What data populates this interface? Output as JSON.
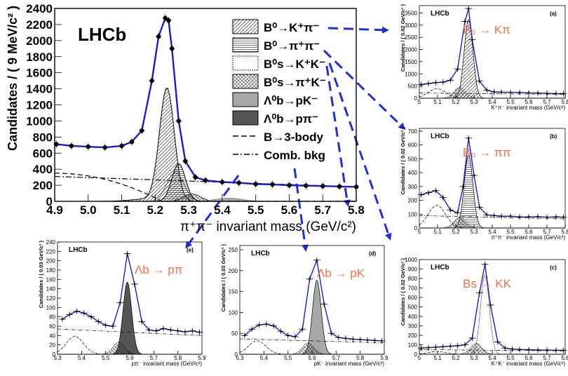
{
  "colors": {
    "fit": "#1c1cd8",
    "arrow": "#1f2fd6",
    "decay_label": "#f0704a",
    "lambda_pk": "#a8a8a8",
    "lambda_ppi": "#555555"
  },
  "chart_data": [
    {
      "id": "main",
      "type": "line",
      "experiment_label": "LHCb",
      "xlabel": "π⁺π⁻ invariant mass (GeV/c²)",
      "ylabel": "Candidates / ( 9 MeV/c² )",
      "xlim": [
        4.9,
        5.8
      ],
      "ylim": [
        0,
        2400
      ],
      "xticks": [
        "4.9",
        "5.0",
        "5.1",
        "5.2",
        "5.3",
        "5.4",
        "5.5",
        "5.6",
        "5.7",
        "5.8"
      ],
      "yticks": [
        "0",
        "200",
        "400",
        "600",
        "800",
        "1000",
        "1200",
        "1400",
        "1600",
        "1800",
        "2000",
        "2200",
        "2400"
      ],
      "legend_position": "top-right",
      "legend": [
        {
          "label": "B⁰→K⁺π⁻",
          "style": "hatch-diag"
        },
        {
          "label": "B⁰→π⁺π⁻",
          "style": "hatch-horiz"
        },
        {
          "label": "B⁰s→K⁺K⁻",
          "style": "dotted"
        },
        {
          "label": "B⁰s→π⁺K⁻",
          "style": "crosshatch"
        },
        {
          "label": "Λ⁰b→pK⁻",
          "style": "light-grey"
        },
        {
          "label": "Λ⁰b→pπ⁻",
          "style": "dark-grey"
        },
        {
          "label": "B→3-body",
          "style": "dashed"
        },
        {
          "label": "Comb. bkg",
          "style": "dashdot"
        }
      ],
      "data_points": {
        "x": [
          4.905,
          4.95,
          5.0,
          5.05,
          5.1,
          5.13,
          5.16,
          5.19,
          5.21,
          5.23,
          5.24,
          5.25,
          5.27,
          5.29,
          5.32,
          5.35,
          5.4,
          5.45,
          5.5,
          5.55,
          5.6,
          5.65,
          5.7,
          5.75,
          5.8
        ],
        "y": [
          710,
          690,
          680,
          670,
          690,
          740,
          880,
          1500,
          2050,
          2280,
          2250,
          1900,
          1000,
          500,
          300,
          260,
          240,
          230,
          215,
          210,
          200,
          195,
          190,
          185,
          180
        ]
      },
      "components": {
        "kpi_peak": {
          "mean": 5.235,
          "sigma": 0.022,
          "height": 1400
        },
        "pipi_peak": {
          "mean": 5.27,
          "sigma": 0.02,
          "height": 470
        },
        "kk_peak": {
          "mean": 5.26,
          "sigma": 0.025,
          "height": 360
        },
        "three_body": {
          "start": 350,
          "end_x": 5.22
        },
        "comb_bkg": {
          "start": 310,
          "end": 180
        }
      }
    },
    {
      "id": "a",
      "type": "line",
      "panel_label": "(a)",
      "experiment_label": "LHCb",
      "decay_label": "B₀ → Kπ",
      "xlabel": "K⁺π⁻ invariant mass (GeV/c²)",
      "ylabel": "Candidates / ( 0.02 GeV/c² )",
      "xlim": [
        5.0,
        5.8
      ],
      "ylim": [
        0,
        3800
      ],
      "xticks": [
        "5",
        "5.1",
        "5.2",
        "5.3",
        "5.4",
        "5.5",
        "5.6",
        "5.7",
        "5.8"
      ],
      "yticks": [
        "0",
        "500",
        "1000",
        "1500",
        "2000",
        "2500",
        "3000",
        "3500"
      ],
      "data_points": {
        "x": [
          5.01,
          5.05,
          5.09,
          5.13,
          5.17,
          5.21,
          5.25,
          5.27,
          5.29,
          5.33,
          5.37,
          5.41,
          5.45,
          5.5,
          5.55,
          5.6,
          5.65,
          5.7,
          5.75,
          5.79
        ],
        "y": [
          560,
          600,
          640,
          660,
          740,
          1200,
          3150,
          3680,
          2400,
          700,
          330,
          260,
          250,
          240,
          235,
          220,
          210,
          200,
          190,
          185
        ]
      }
    },
    {
      "id": "b",
      "type": "line",
      "panel_label": "(b)",
      "experiment_label": "LHCb",
      "decay_label": "B₀ → ππ",
      "xlabel": "π⁺π⁻ invariant mass (GeV/c²)",
      "ylabel": "Candidates / ( 0.02 GeV/c² )",
      "xlim": [
        5.0,
        5.8
      ],
      "ylim": [
        0,
        720
      ],
      "xticks": [
        "5",
        "5.1",
        "5.2",
        "5.3",
        "5.4",
        "5.5",
        "5.6",
        "5.7",
        "5.8"
      ],
      "yticks": [
        "0",
        "100",
        "200",
        "300",
        "400",
        "500",
        "600",
        "700"
      ],
      "data_points": {
        "x": [
          5.01,
          5.05,
          5.09,
          5.13,
          5.17,
          5.21,
          5.24,
          5.27,
          5.3,
          5.33,
          5.37,
          5.41,
          5.45,
          5.5,
          5.55,
          5.6,
          5.65,
          5.7,
          5.75,
          5.79
        ],
        "y": [
          240,
          255,
          270,
          220,
          130,
          110,
          300,
          650,
          380,
          150,
          95,
          90,
          85,
          85,
          80,
          80,
          82,
          78,
          80,
          78
        ]
      }
    },
    {
      "id": "c",
      "type": "line",
      "panel_label": "(c)",
      "experiment_label": "LHCb",
      "decay_label": "Bs → KK",
      "xlabel": "K⁺K⁻ invariant mass (GeV/c²)",
      "ylabel": "Candidates / ( 0.02 GeV/c² )",
      "xlim": [
        5.0,
        5.8
      ],
      "ylim": [
        0,
        1000
      ],
      "xticks": [
        "5",
        "5.1",
        "5.2",
        "5.3",
        "5.4",
        "5.5",
        "5.6",
        "5.7",
        "5.8"
      ],
      "yticks": [
        "0",
        "100",
        "200",
        "300",
        "400",
        "500",
        "600",
        "700",
        "800",
        "900",
        "1000"
      ],
      "data_points": {
        "x": [
          5.01,
          5.05,
          5.09,
          5.13,
          5.17,
          5.21,
          5.25,
          5.29,
          5.33,
          5.36,
          5.39,
          5.43,
          5.47,
          5.51,
          5.55,
          5.6,
          5.65,
          5.7,
          5.75,
          5.79
        ],
        "y": [
          65,
          70,
          75,
          80,
          85,
          90,
          100,
          170,
          650,
          950,
          520,
          130,
          65,
          55,
          50,
          48,
          45,
          44,
          42,
          42
        ]
      }
    },
    {
      "id": "d",
      "type": "line",
      "panel_label": "(d)",
      "experiment_label": "LHCb",
      "decay_label": "Λb → pK",
      "xlabel": "pK⁻ invariant mass (GeV/c²)",
      "ylabel": "Candidates / ( 0.03 GeV/c² )",
      "xlim": [
        5.3,
        5.9
      ],
      "ylim": [
        0,
        260
      ],
      "xticks": [
        "5.3",
        "5.4",
        "5.5",
        "5.6",
        "5.7",
        "5.8",
        "5.9"
      ],
      "yticks": [
        "0",
        "50",
        "100",
        "150",
        "200",
        "250"
      ],
      "data_points": {
        "x": [
          5.32,
          5.35,
          5.38,
          5.41,
          5.44,
          5.47,
          5.5,
          5.53,
          5.56,
          5.59,
          5.62,
          5.65,
          5.68,
          5.71,
          5.74,
          5.77,
          5.8,
          5.83,
          5.86,
          5.89
        ],
        "y": [
          45,
          60,
          70,
          72,
          68,
          55,
          45,
          42,
          60,
          180,
          225,
          120,
          50,
          40,
          38,
          36,
          35,
          34,
          33,
          32
        ]
      }
    },
    {
      "id": "e",
      "type": "line",
      "panel_label": "(e)",
      "experiment_label": "LHCb",
      "decay_label": "Λb → pπ",
      "xlabel": "pπ⁻ invariant mass (GeV/c²)",
      "ylabel": "Candidates / ( 0.03 GeV/c² )",
      "xlim": [
        5.3,
        5.9
      ],
      "ylim": [
        0,
        240
      ],
      "xticks": [
        "5.3",
        "5.4",
        "5.5",
        "5.6",
        "5.7",
        "5.8",
        "5.9"
      ],
      "yticks": [
        "0",
        "20",
        "40",
        "60",
        "80",
        "100",
        "120",
        "140",
        "160",
        "180",
        "200",
        "220",
        "240"
      ],
      "data_points": {
        "x": [
          5.32,
          5.35,
          5.38,
          5.41,
          5.44,
          5.47,
          5.5,
          5.53,
          5.56,
          5.59,
          5.62,
          5.65,
          5.68,
          5.71,
          5.74,
          5.77,
          5.8,
          5.83,
          5.86,
          5.89
        ],
        "y": [
          75,
          85,
          92,
          88,
          80,
          70,
          62,
          60,
          110,
          215,
          150,
          70,
          52,
          50,
          55,
          52,
          50,
          48,
          50,
          47
        ]
      }
    }
  ]
}
